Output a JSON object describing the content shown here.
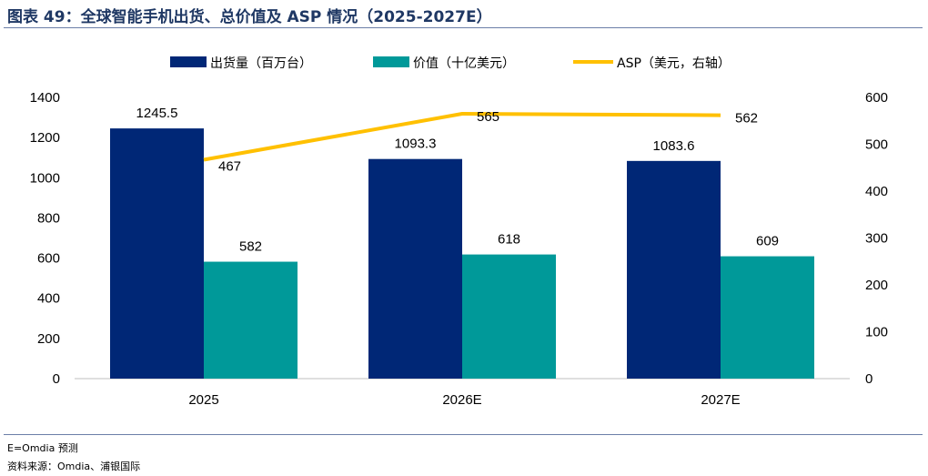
{
  "header": {
    "title": "图表 49：全球智能手机出货、总价值及 ASP 情况（2025-2027E）"
  },
  "chart_data": {
    "type": "bar",
    "categories": [
      "2025",
      "2026E",
      "2027E"
    ],
    "series": [
      {
        "name": "出货量（百万台）",
        "type": "bar",
        "axis": "left",
        "color": "#002776",
        "values": [
          1245.5,
          1093.3,
          1083.6
        ],
        "labels": [
          "1245.5",
          "1093.3",
          "1083.6"
        ]
      },
      {
        "name": "价值（十亿美元）",
        "type": "bar",
        "axis": "left",
        "color": "#009999",
        "values": [
          582,
          618,
          609
        ],
        "labels": [
          "582",
          "618",
          "609"
        ]
      },
      {
        "name": "ASP（美元，右轴）",
        "type": "line",
        "axis": "right",
        "color": "#ffc000",
        "values": [
          467,
          565,
          562
        ],
        "labels": [
          "467",
          "565",
          "562"
        ]
      }
    ],
    "y_left": {
      "min": 0,
      "max": 1400,
      "ticks": [
        "0",
        "200",
        "400",
        "600",
        "800",
        "1000",
        "1200",
        "1400"
      ]
    },
    "y_right": {
      "min": 0,
      "max": 600,
      "ticks": [
        "0",
        "100",
        "200",
        "300",
        "400",
        "500",
        "600"
      ]
    },
    "grid": false,
    "legend_position": "top"
  },
  "footer": {
    "note": "E=Omdia 预测",
    "source": "资料来源：Omdia、浦银国际"
  }
}
